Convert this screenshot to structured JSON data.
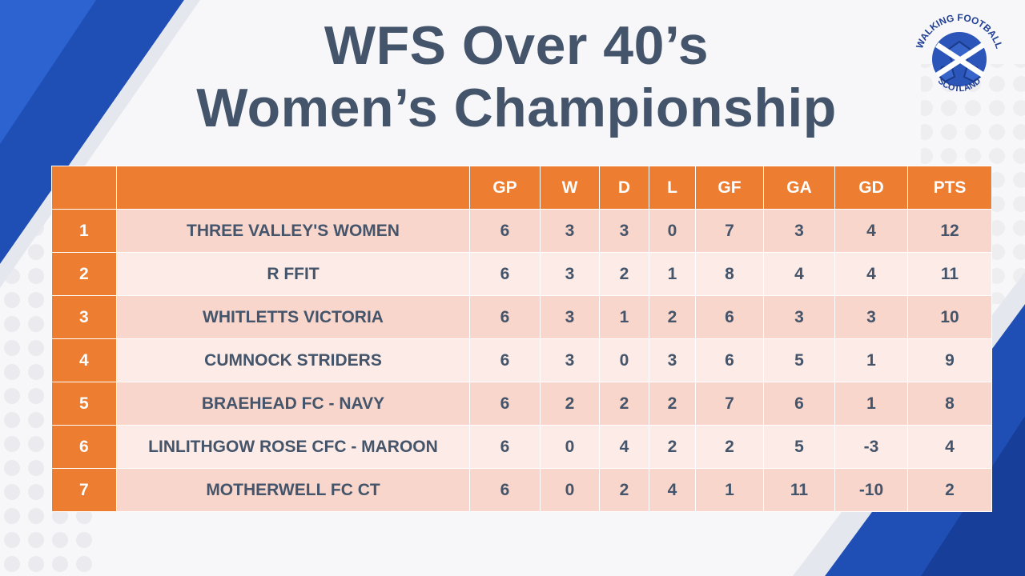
{
  "title": {
    "line1": "WFS Over 40’s",
    "line2": "Women’s Championship"
  },
  "logo": {
    "text_top": "WALKING FOOTBALL",
    "text_bottom": "SCOTLAND",
    "icon": "football-saltire-logo"
  },
  "colors": {
    "header_orange": "#ed7d31",
    "row_dark": "#f8d6cb",
    "row_light": "#fcebe6",
    "text": "#44546a",
    "accent_blue": "#1f4fb4"
  },
  "table": {
    "columns": [
      "",
      "",
      "GP",
      "W",
      "D",
      "L",
      "GF",
      "GA",
      "GD",
      "PTS"
    ],
    "rows": [
      {
        "pos": "1",
        "team": "THREE VALLEY'S WOMEN",
        "gp": "6",
        "w": "3",
        "d": "3",
        "l": "0",
        "gf": "7",
        "ga": "3",
        "gd": "4",
        "pts": "12"
      },
      {
        "pos": "2",
        "team": "R FFIT",
        "gp": "6",
        "w": "3",
        "d": "2",
        "l": "1",
        "gf": "8",
        "ga": "4",
        "gd": "4",
        "pts": "11"
      },
      {
        "pos": "3",
        "team": "WHITLETTS VICTORIA",
        "gp": "6",
        "w": "3",
        "d": "1",
        "l": "2",
        "gf": "6",
        "ga": "3",
        "gd": "3",
        "pts": "10"
      },
      {
        "pos": "4",
        "team": "CUMNOCK STRIDERS",
        "gp": "6",
        "w": "3",
        "d": "0",
        "l": "3",
        "gf": "6",
        "ga": "5",
        "gd": "1",
        "pts": "9"
      },
      {
        "pos": "5",
        "team": "BRAEHEAD FC - NAVY",
        "gp": "6",
        "w": "2",
        "d": "2",
        "l": "2",
        "gf": "7",
        "ga": "6",
        "gd": "1",
        "pts": "8"
      },
      {
        "pos": "6",
        "team": "LINLITHGOW ROSE CFC - MAROON",
        "gp": "6",
        "w": "0",
        "d": "4",
        "l": "2",
        "gf": "2",
        "ga": "5",
        "gd": "-3",
        "pts": "4"
      },
      {
        "pos": "7",
        "team": "MOTHERWELL FC CT",
        "gp": "6",
        "w": "0",
        "d": "2",
        "l": "4",
        "gf": "1",
        "ga": "11",
        "gd": "-10",
        "pts": "2"
      }
    ]
  }
}
